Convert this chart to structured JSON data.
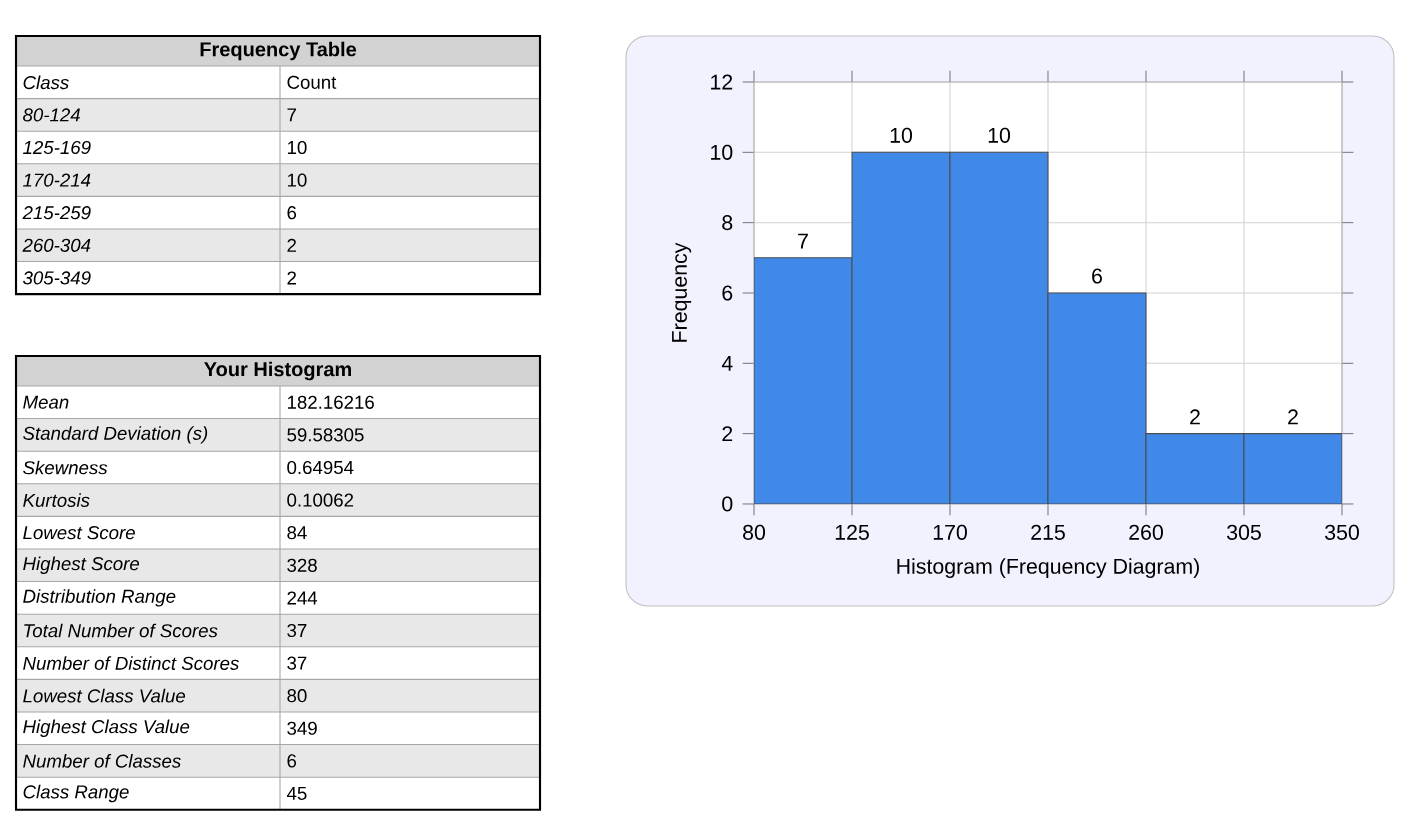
{
  "chart_data": [
    {
      "type": "other",
      "title": "Frequency Table",
      "annotations": [
        "Class",
        "Count",
        "80-124",
        "7",
        "125-169",
        "10",
        "170-214",
        "10",
        "215-259",
        "6",
        "260-304",
        "2",
        "305-349",
        "2"
      ]
    },
    {
      "type": "histogram",
      "ylabel": "Frequency",
      "xlabel": "Histogram (Frequency Diagram)",
      "bins": [
        80,
        125,
        170,
        215,
        260,
        305,
        350
      ],
      "values": [
        7,
        10,
        10,
        6,
        2,
        2
      ],
      "color": "#4189e8",
      "xlim": [
        80,
        350
      ],
      "xticks": [
        80,
        125,
        170,
        215,
        260,
        305,
        350
      ],
      "ylim": [
        0,
        12
      ],
      "yticks": [
        0,
        2,
        4,
        6,
        8,
        10,
        12
      ],
      "grid": true,
      "data_labels": true
    },
    {
      "type": "other",
      "title": "Your Histogram",
      "annotations": [
        "Mean",
        "182.16216",
        "Standard Deviation (s)",
        "59.58305",
        "Skewness",
        "0.64954",
        "Kurtosis",
        "0.10062",
        "Lowest Score",
        "84",
        "Highest Score",
        "328",
        "Distribution Range",
        "244",
        "Total Number of Scores",
        "37",
        "Number of Distinct Scores",
        "37",
        "Lowest Class Value",
        "80",
        "Highest Class Value",
        "349",
        "Number of Classes",
        "6",
        "Class Range",
        "45"
      ]
    }
  ]
}
